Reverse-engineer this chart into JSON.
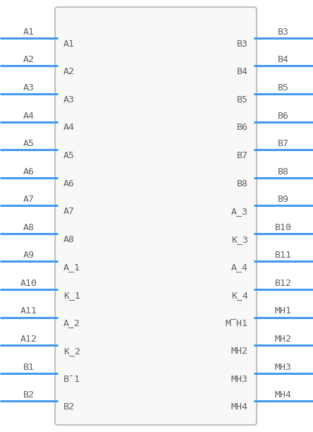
{
  "bg_color": "#ffffff",
  "box_edge_color": "#c0c0c0",
  "box_face_color": "#f8f8f8",
  "pin_line_color": "#4499ee",
  "text_color": "#606060",
  "left_outer": [
    "A1",
    "A2",
    "A3",
    "A4",
    "A5",
    "A6",
    "A7",
    "A8",
    "A9",
    "A10",
    "A11",
    "A12",
    "B1",
    "B2"
  ],
  "right_outer": [
    "B3",
    "B4",
    "B5",
    "B6",
    "B7",
    "B8",
    "B9",
    "B10",
    "B11",
    "B12",
    "MH1",
    "MH2",
    "MH3",
    "MH4"
  ],
  "inner_left": [
    "A1",
    "A2",
    "A3",
    "A4",
    "A5",
    "A6",
    "A7",
    "A8",
    "A_1",
    "K_1",
    "A_2",
    "K_2",
    "B¯1",
    "B2"
  ],
  "inner_right": [
    "B3",
    "B4",
    "B5",
    "B6",
    "B7",
    "B8",
    "A_3",
    "K_3",
    "A_4",
    "K_4",
    "M̅H1",
    "MH2",
    "MH3",
    "MH4"
  ],
  "figsize": [
    4.44,
    6.12
  ],
  "dpi": 100
}
